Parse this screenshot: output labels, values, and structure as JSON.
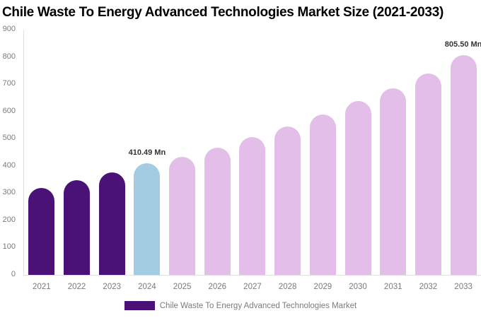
{
  "title": "Chile Waste To Energy Advanced Technologies Market Size (2021-2033)",
  "legend": {
    "label": "Chile Waste To Energy Advanced Technologies Market",
    "swatch_color": "#4A1277"
  },
  "colors": {
    "purple": "#4A1277",
    "highlight_blue": "#A3CBE1",
    "forecast_pink": "#E3BEE8",
    "axis_line": "#E0E0E0",
    "tick_text": "#7A7A7A",
    "annotation_text": "#333333",
    "title_text": "#000000",
    "background": "#FFFFFF"
  },
  "chart_data": {
    "type": "bar",
    "title": "Chile Waste To Energy Advanced Technologies Market Size (2021-2033)",
    "xlabel": "",
    "ylabel": "",
    "categories": [
      "2021",
      "2022",
      "2023",
      "2024",
      "2025",
      "2026",
      "2027",
      "2028",
      "2029",
      "2030",
      "2031",
      "2032",
      "2033"
    ],
    "series": [
      {
        "name": "Chile Waste To Energy Advanced Technologies Market",
        "values": [
          320,
          347,
          375,
          410.49,
          434,
          467,
          506,
          546,
          588,
          637,
          685,
          740,
          805.5
        ]
      }
    ],
    "values": [
      320,
      347,
      375,
      410.49,
      434,
      467,
      506,
      546,
      588,
      637,
      685,
      740,
      805.5
    ],
    "bar_colors": [
      "#4A1277",
      "#4A1277",
      "#4A1277",
      "#A3CBE1",
      "#E3BEE8",
      "#E3BEE8",
      "#E3BEE8",
      "#E3BEE8",
      "#E3BEE8",
      "#E3BEE8",
      "#E3BEE8",
      "#E3BEE8",
      "#E3BEE8"
    ],
    "annotations": [
      {
        "index": 3,
        "text": "410.49 Mn"
      },
      {
        "index": 12,
        "text": "805.50 Mn"
      }
    ],
    "ylim": [
      0,
      900
    ],
    "yticks": [
      0,
      100,
      200,
      300,
      400,
      500,
      600,
      700,
      800,
      900
    ],
    "grid": false,
    "legend_position": "bottom"
  }
}
